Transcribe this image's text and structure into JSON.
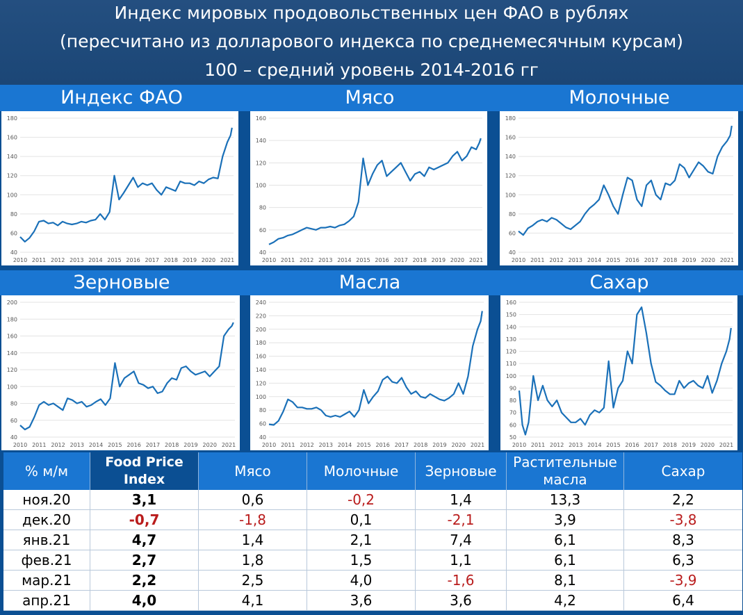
{
  "header": {
    "line1": "Индекс мировых продовольственных цен ФАО в рублях",
    "line2": "(пересчитано из долларового индекса по среднемесячным курсам)",
    "line3": "100 – средний уровень 2014-2016 гг"
  },
  "colors": {
    "line": "#1a70b8",
    "band": "#1a76d2",
    "bg": "#0b4f93",
    "negative": "#b91c1c"
  },
  "chart_data": [
    {
      "type": "line",
      "title": "Индекс ФАО",
      "xlim": [
        2010,
        2021.33
      ],
      "ylim": [
        40,
        180
      ],
      "yticks": [
        40,
        60,
        80,
        100,
        120,
        140,
        160,
        180
      ],
      "xticks": [
        2010,
        2011,
        2012,
        2013,
        2014,
        2015,
        2016,
        2017,
        2018,
        2019,
        2020,
        2021
      ],
      "x": [
        2010,
        2010.25,
        2010.5,
        2010.75,
        2011,
        2011.25,
        2011.5,
        2011.75,
        2012,
        2012.25,
        2012.5,
        2012.75,
        2013,
        2013.25,
        2013.5,
        2013.75,
        2014,
        2014.25,
        2014.5,
        2014.75,
        2015,
        2015.25,
        2015.5,
        2015.75,
        2016,
        2016.25,
        2016.5,
        2016.75,
        2017,
        2017.25,
        2017.5,
        2017.75,
        2018,
        2018.25,
        2018.5,
        2018.75,
        2019,
        2019.25,
        2019.5,
        2019.75,
        2020,
        2020.25,
        2020.5,
        2020.75,
        2021,
        2021.17,
        2021.25
      ],
      "y": [
        56,
        51,
        55,
        62,
        72,
        73,
        70,
        71,
        68,
        72,
        70,
        69,
        70,
        72,
        71,
        73,
        74,
        80,
        74,
        82,
        120,
        95,
        102,
        110,
        118,
        108,
        112,
        110,
        112,
        105,
        100,
        108,
        106,
        104,
        114,
        112,
        112,
        110,
        114,
        112,
        116,
        118,
        117,
        140,
        155,
        162,
        170
      ]
    },
    {
      "type": "line",
      "title": "Мясо",
      "xlim": [
        2010,
        2021.33
      ],
      "ylim": [
        40,
        160
      ],
      "yticks": [
        40,
        60,
        80,
        100,
        120,
        140,
        160
      ],
      "xticks": [
        2010,
        2011,
        2012,
        2013,
        2014,
        2015,
        2016,
        2017,
        2018,
        2019,
        2020,
        2021
      ],
      "x": [
        2010,
        2010.25,
        2010.5,
        2010.75,
        2011,
        2011.25,
        2011.5,
        2011.75,
        2012,
        2012.25,
        2012.5,
        2012.75,
        2013,
        2013.25,
        2013.5,
        2013.75,
        2014,
        2014.25,
        2014.5,
        2014.75,
        2015,
        2015.25,
        2015.5,
        2015.75,
        2016,
        2016.25,
        2016.5,
        2016.75,
        2017,
        2017.25,
        2017.5,
        2017.75,
        2018,
        2018.25,
        2018.5,
        2018.75,
        2019,
        2019.25,
        2019.5,
        2019.75,
        2020,
        2020.25,
        2020.5,
        2020.75,
        2021,
        2021.17,
        2021.25
      ],
      "y": [
        47,
        49,
        52,
        53,
        55,
        56,
        58,
        60,
        62,
        61,
        60,
        62,
        62,
        63,
        62,
        64,
        65,
        68,
        72,
        85,
        124,
        100,
        110,
        118,
        122,
        108,
        112,
        116,
        120,
        112,
        104,
        110,
        112,
        108,
        116,
        114,
        116,
        118,
        120,
        126,
        130,
        122,
        126,
        134,
        132,
        138,
        142
      ]
    },
    {
      "type": "line",
      "title": "Молочные",
      "xlim": [
        2010,
        2021.33
      ],
      "ylim": [
        40,
        180
      ],
      "yticks": [
        40,
        60,
        80,
        100,
        120,
        140,
        160,
        180
      ],
      "xticks": [
        2010,
        2011,
        2012,
        2013,
        2014,
        2015,
        2016,
        2017,
        2018,
        2019,
        2020,
        2021
      ],
      "x": [
        2010,
        2010.25,
        2010.5,
        2010.75,
        2011,
        2011.25,
        2011.5,
        2011.75,
        2012,
        2012.25,
        2012.5,
        2012.75,
        2013,
        2013.25,
        2013.5,
        2013.75,
        2014,
        2014.25,
        2014.5,
        2014.75,
        2015,
        2015.25,
        2015.5,
        2015.75,
        2016,
        2016.25,
        2016.5,
        2016.75,
        2017,
        2017.25,
        2017.5,
        2017.75,
        2018,
        2018.25,
        2018.5,
        2018.75,
        2019,
        2019.25,
        2019.5,
        2019.75,
        2020,
        2020.25,
        2020.5,
        2020.75,
        2021,
        2021.17,
        2021.25
      ],
      "y": [
        62,
        58,
        65,
        68,
        72,
        74,
        72,
        76,
        74,
        70,
        66,
        64,
        68,
        72,
        80,
        86,
        90,
        95,
        110,
        100,
        88,
        80,
        100,
        118,
        115,
        95,
        88,
        110,
        115,
        100,
        95,
        112,
        110,
        115,
        132,
        128,
        118,
        126,
        134,
        130,
        124,
        122,
        140,
        150,
        156,
        162,
        172
      ]
    },
    {
      "type": "line",
      "title": "Зерновые",
      "xlim": [
        2010,
        2021.33
      ],
      "ylim": [
        40,
        200
      ],
      "yticks": [
        40,
        60,
        80,
        100,
        120,
        140,
        160,
        180,
        200
      ],
      "xticks": [
        2010,
        2011,
        2012,
        2013,
        2014,
        2015,
        2016,
        2017,
        2018,
        2019,
        2020,
        2021
      ],
      "x": [
        2010,
        2010.25,
        2010.5,
        2010.75,
        2011,
        2011.25,
        2011.5,
        2011.75,
        2012,
        2012.25,
        2012.5,
        2012.75,
        2013,
        2013.25,
        2013.5,
        2013.75,
        2014,
        2014.25,
        2014.5,
        2014.75,
        2015,
        2015.25,
        2015.5,
        2015.75,
        2016,
        2016.25,
        2016.5,
        2016.75,
        2017,
        2017.25,
        2017.5,
        2017.75,
        2018,
        2018.25,
        2018.5,
        2018.75,
        2019,
        2019.25,
        2019.5,
        2019.75,
        2020,
        2020.25,
        2020.5,
        2020.75,
        2021,
        2021.17,
        2021.25
      ],
      "y": [
        54,
        49,
        52,
        64,
        78,
        82,
        78,
        80,
        76,
        72,
        86,
        84,
        80,
        82,
        76,
        78,
        82,
        85,
        78,
        86,
        128,
        100,
        110,
        114,
        118,
        104,
        102,
        98,
        100,
        92,
        94,
        104,
        110,
        108,
        122,
        124,
        118,
        114,
        116,
        118,
        112,
        118,
        124,
        160,
        168,
        172,
        176
      ]
    },
    {
      "type": "line",
      "title": "Масла",
      "xlim": [
        2010,
        2021.33
      ],
      "ylim": [
        40,
        240
      ],
      "yticks": [
        40,
        60,
        80,
        100,
        120,
        140,
        160,
        180,
        200,
        220,
        240
      ],
      "xticks": [
        2010,
        2011,
        2012,
        2013,
        2014,
        2015,
        2016,
        2017,
        2018,
        2019,
        2020,
        2021
      ],
      "x": [
        2010,
        2010.25,
        2010.5,
        2010.75,
        2011,
        2011.25,
        2011.5,
        2011.75,
        2012,
        2012.25,
        2012.5,
        2012.75,
        2013,
        2013.25,
        2013.5,
        2013.75,
        2014,
        2014.25,
        2014.5,
        2014.75,
        2015,
        2015.25,
        2015.5,
        2015.75,
        2016,
        2016.25,
        2016.5,
        2016.75,
        2017,
        2017.25,
        2017.5,
        2017.75,
        2018,
        2018.25,
        2018.5,
        2018.75,
        2019,
        2019.25,
        2019.5,
        2019.75,
        2020,
        2020.25,
        2020.5,
        2020.75,
        2021,
        2021.17,
        2021.25
      ],
      "y": [
        59,
        58,
        64,
        78,
        96,
        92,
        84,
        84,
        82,
        82,
        84,
        80,
        72,
        70,
        72,
        70,
        74,
        78,
        70,
        80,
        110,
        90,
        100,
        108,
        125,
        130,
        122,
        120,
        128,
        114,
        104,
        108,
        100,
        98,
        104,
        100,
        96,
        94,
        98,
        104,
        120,
        104,
        130,
        175,
        200,
        212,
        227
      ]
    },
    {
      "type": "line",
      "title": "Сахар",
      "xlim": [
        2010,
        2021.33
      ],
      "ylim": [
        50,
        160
      ],
      "yticks": [
        50,
        60,
        70,
        80,
        90,
        100,
        110,
        120,
        130,
        140,
        150,
        160
      ],
      "xticks": [
        2010,
        2011,
        2012,
        2013,
        2014,
        2015,
        2016,
        2017,
        2018,
        2019,
        2020,
        2021
      ],
      "x": [
        2010,
        2010.17,
        2010.33,
        2010.5,
        2010.75,
        2011,
        2011.25,
        2011.5,
        2011.75,
        2012,
        2012.25,
        2012.5,
        2012.75,
        2013,
        2013.25,
        2013.5,
        2013.75,
        2014,
        2014.25,
        2014.5,
        2014.75,
        2015,
        2015.25,
        2015.5,
        2015.75,
        2016,
        2016.25,
        2016.5,
        2016.75,
        2017,
        2017.25,
        2017.5,
        2017.75,
        2018,
        2018.25,
        2018.5,
        2018.75,
        2019,
        2019.25,
        2019.5,
        2019.75,
        2020,
        2020.25,
        2020.5,
        2020.75,
        2021,
        2021.17,
        2021.25
      ],
      "y": [
        88,
        60,
        52,
        62,
        100,
        80,
        92,
        80,
        75,
        80,
        70,
        66,
        62,
        62,
        65,
        60,
        68,
        72,
        70,
        74,
        112,
        74,
        90,
        96,
        120,
        110,
        150,
        156,
        135,
        110,
        95,
        92,
        88,
        85,
        85,
        96,
        90,
        94,
        96,
        92,
        90,
        100,
        86,
        96,
        110,
        120,
        130,
        139
      ]
    }
  ],
  "table": {
    "headers": [
      "% м/м",
      "Food Price Index",
      "Мясо",
      "Молочные",
      "Зерновые",
      "Растительные масла",
      "Сахар"
    ],
    "rows": [
      [
        "ноя.20",
        "3,1",
        "0,6",
        "-0,2",
        "1,4",
        "13,3",
        "2,2"
      ],
      [
        "дек.20",
        "-0,7",
        "-1,8",
        "0,1",
        "-2,1",
        "3,9",
        "-3,8"
      ],
      [
        "янв.21",
        "4,7",
        "1,4",
        "2,1",
        "7,4",
        "6,1",
        "8,3"
      ],
      [
        "фев.21",
        "2,7",
        "1,8",
        "1,5",
        "1,1",
        "6,1",
        "6,3"
      ],
      [
        "мар.21",
        "2,2",
        "2,5",
        "4,0",
        "-1,6",
        "8,1",
        "-3,9"
      ],
      [
        "апр.21",
        "4,0",
        "4,1",
        "3,6",
        "3,6",
        "4,2",
        "6,4"
      ]
    ]
  }
}
